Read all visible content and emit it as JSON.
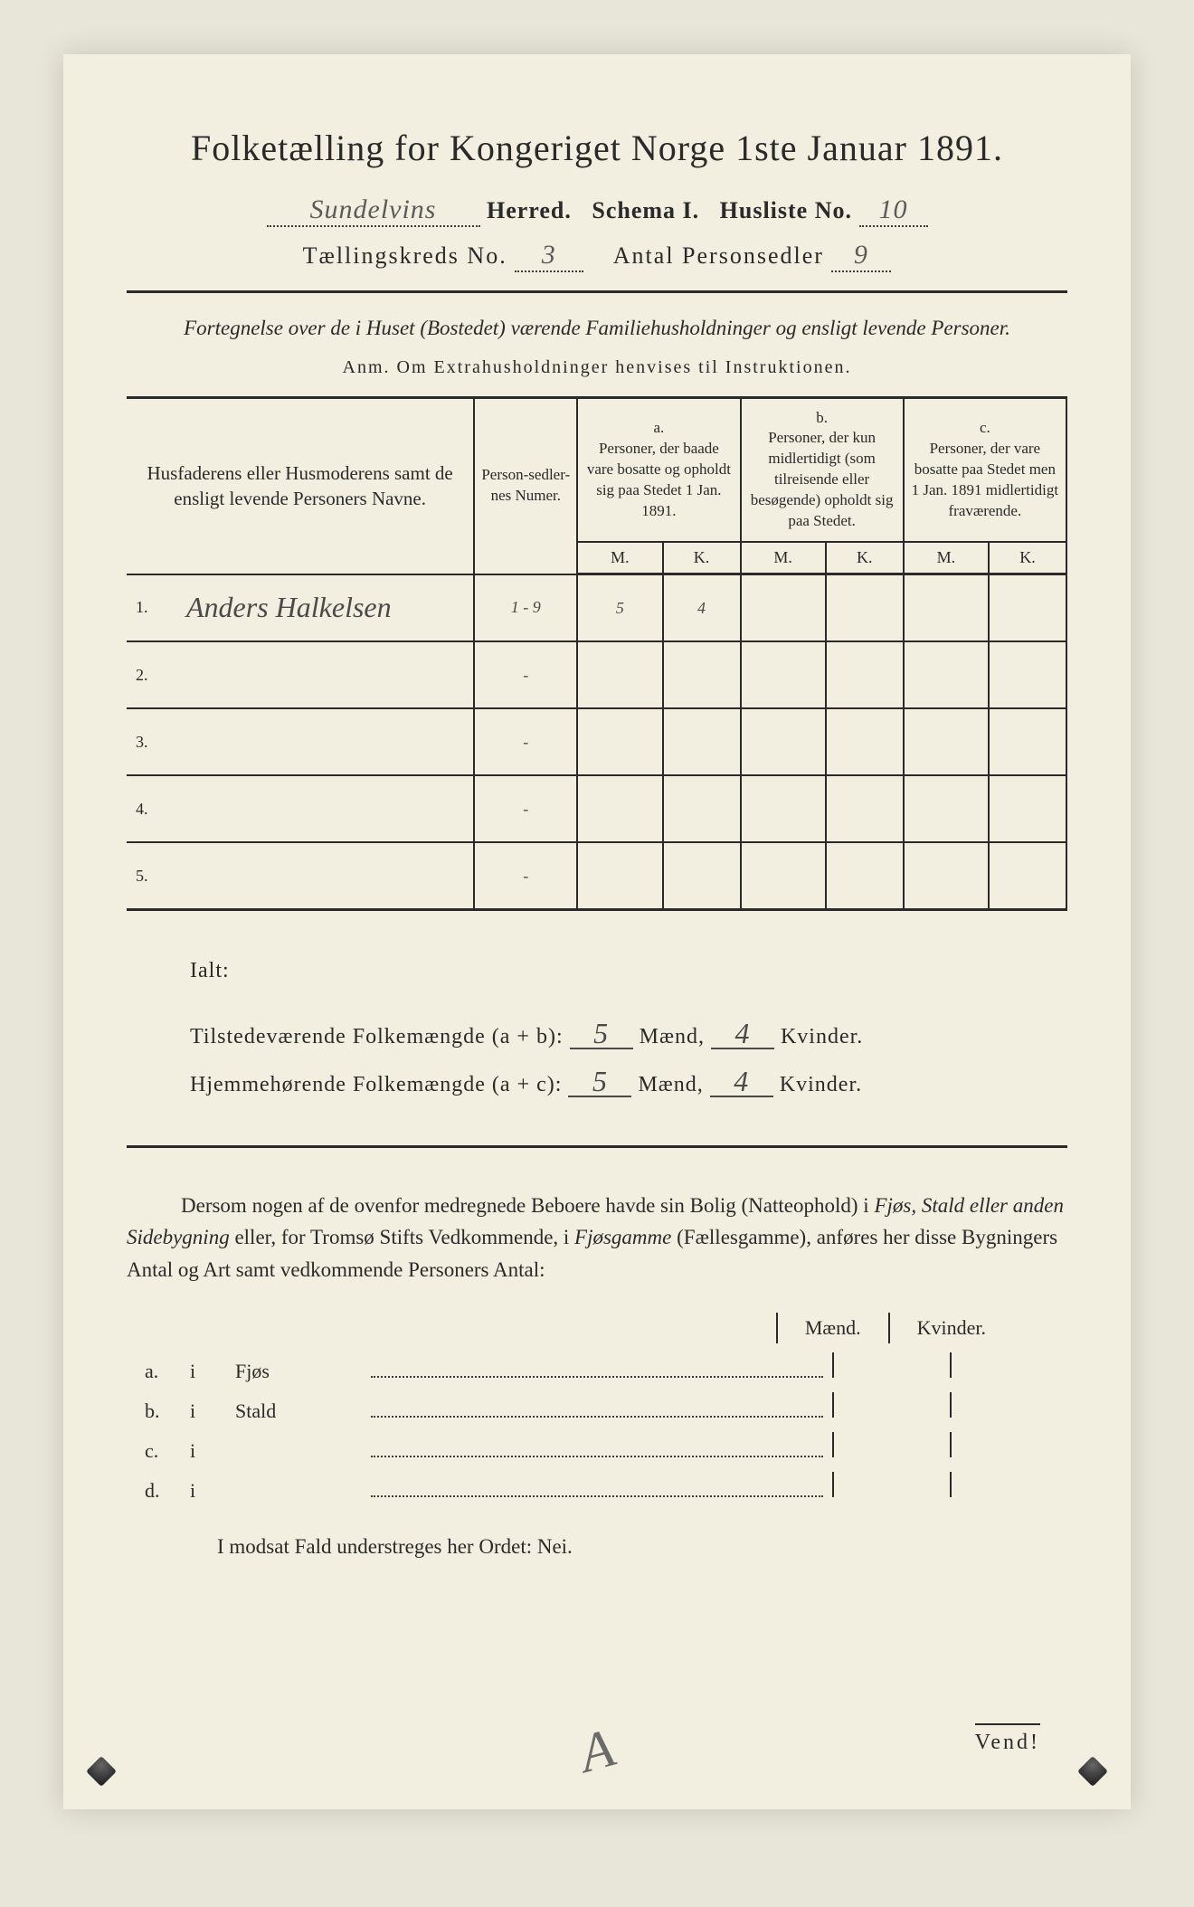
{
  "title": "Folketælling for Kongeriget Norge 1ste Januar 1891.",
  "header": {
    "herred_value": "Sundelvins",
    "herred_label": "Herred.",
    "schema_label": "Schema I.",
    "husliste_label": "Husliste No.",
    "husliste_value": "10",
    "kreds_label": "Tællingskreds No.",
    "kreds_value": "3",
    "antal_label": "Antal Personsedler",
    "antal_value": "9"
  },
  "subtitle": "Fortegnelse over de i Huset (Bostedet) værende Familiehusholdninger og ensligt levende Personer.",
  "anm": "Anm.  Om Extrahusholdninger henvises til Instruktionen.",
  "table": {
    "col1": "Husfaderens eller Husmoderens samt de ensligt levende Personers Navne.",
    "col2": "Person-sedler-nes Numer.",
    "col_a_label": "a.",
    "col_a": "Personer, der baade vare bosatte og opholdt sig paa Stedet 1 Jan. 1891.",
    "col_b_label": "b.",
    "col_b": "Personer, der kun midlertidigt (som tilreisende eller besøgende) opholdt sig paa Stedet.",
    "col_c_label": "c.",
    "col_c": "Personer, der vare bosatte paa Stedet men 1 Jan. 1891 midlertidigt fraværende.",
    "M": "M.",
    "K": "K.",
    "rows": [
      {
        "num": "1.",
        "name": "Anders Halkelsen",
        "sedler": "1 - 9",
        "aM": "5",
        "aK": "4",
        "bM": "",
        "bK": "",
        "cM": "",
        "cK": ""
      },
      {
        "num": "2.",
        "name": "",
        "sedler": "-",
        "aM": "",
        "aK": "",
        "bM": "",
        "bK": "",
        "cM": "",
        "cK": ""
      },
      {
        "num": "3.",
        "name": "",
        "sedler": "-",
        "aM": "",
        "aK": "",
        "bM": "",
        "bK": "",
        "cM": "",
        "cK": ""
      },
      {
        "num": "4.",
        "name": "",
        "sedler": "-",
        "aM": "",
        "aK": "",
        "bM": "",
        "bK": "",
        "cM": "",
        "cK": ""
      },
      {
        "num": "5.",
        "name": "",
        "sedler": "-",
        "aM": "",
        "aK": "",
        "bM": "",
        "bK": "",
        "cM": "",
        "cK": ""
      }
    ]
  },
  "ialt": {
    "heading": "Ialt:",
    "line1_a": "Tilstedeværende Folkemængde (a + b):",
    "line1_m": "5",
    "maend": "Mænd,",
    "line1_k": "4",
    "kvinder": "Kvinder.",
    "line2_a": "Hjemmehørende Folkemængde (a + c):",
    "line2_m": "5",
    "line2_k": "4"
  },
  "dersom": "Dersom nogen af de ovenfor medregnede Beboere havde sin Bolig (Natteophold) i <i>Fjøs, Stald eller anden Sidebygning</i> eller, for Tromsø Stifts Vedkommende, i <i>Fjøsgamme</i> (Fællesgamme), anføres her disse Bygningers Antal og Art samt vedkommende Personers Antal:",
  "mk": {
    "maend": "Mænd.",
    "kvinder": "Kvinder."
  },
  "buildings": [
    {
      "l": "a.",
      "i": "i",
      "name": "Fjøs"
    },
    {
      "l": "b.",
      "i": "i",
      "name": "Stald"
    },
    {
      "l": "c.",
      "i": "i",
      "name": ""
    },
    {
      "l": "d.",
      "i": "i",
      "name": ""
    }
  ],
  "modsat": "I modsat Fald understreges her Ordet: Nei.",
  "vend": "Vend!",
  "scribble": "A",
  "colors": {
    "bg": "#e8e6d8",
    "paper": "#f2efe0",
    "ink": "#2a2a2a",
    "handwriting": "#4a4a4a"
  }
}
